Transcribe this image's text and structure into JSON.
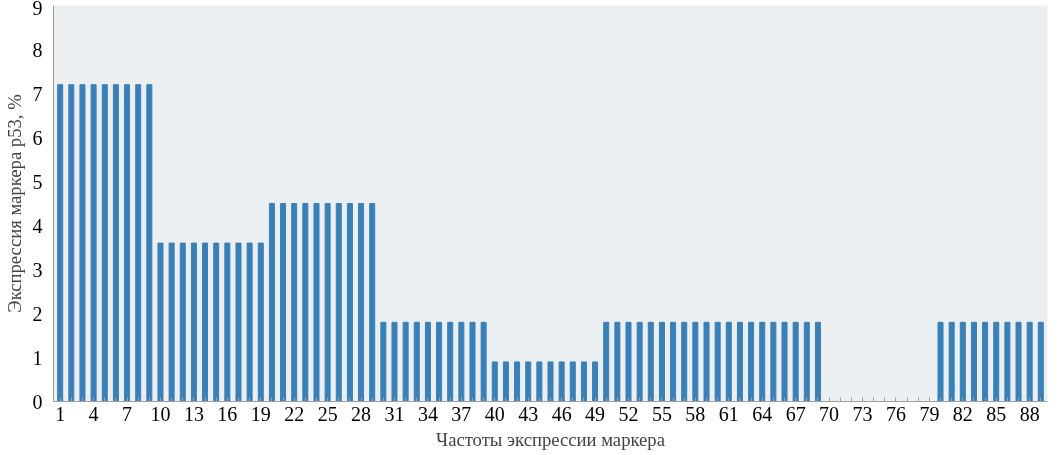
{
  "chart_data": {
    "type": "bar",
    "xlabel": "Частоты экспрессии маркера",
    "ylabel": "Экспрессия маркера p53, %",
    "categories": [
      "1",
      null,
      null,
      "4",
      null,
      null,
      "7",
      null,
      null,
      "10",
      null,
      null,
      "13",
      null,
      null,
      "16",
      null,
      null,
      "19",
      null,
      null,
      "22",
      null,
      null,
      "25",
      null,
      null,
      "28",
      null,
      null,
      "31",
      null,
      null,
      "34",
      null,
      null,
      "37",
      null,
      null,
      "40",
      null,
      null,
      "43",
      null,
      null,
      "46",
      null,
      null,
      "49",
      null,
      null,
      "52",
      null,
      null,
      "55",
      null,
      null,
      "58",
      null,
      null,
      "61",
      null,
      null,
      "64",
      null,
      null,
      "67",
      null,
      null,
      "70",
      null,
      null,
      "73",
      null,
      null,
      "76",
      null,
      null,
      "79",
      null,
      null,
      "82",
      null,
      null,
      "85",
      null,
      null,
      "88",
      null
    ],
    "values": [
      7.2,
      7.2,
      7.2,
      7.2,
      7.2,
      7.2,
      7.2,
      7.2,
      7.2,
      3.6,
      3.6,
      3.6,
      3.6,
      3.6,
      3.6,
      3.6,
      3.6,
      3.6,
      3.6,
      4.5,
      4.5,
      4.5,
      4.5,
      4.5,
      4.5,
      4.5,
      4.5,
      4.5,
      4.5,
      1.8,
      1.8,
      1.8,
      1.8,
      1.8,
      1.8,
      1.8,
      1.8,
      1.8,
      1.8,
      0.9,
      0.9,
      0.9,
      0.9,
      0.9,
      0.9,
      0.9,
      0.9,
      0.9,
      0.9,
      1.8,
      1.8,
      1.8,
      1.8,
      1.8,
      1.8,
      1.8,
      1.8,
      1.8,
      1.8,
      1.8,
      1.8,
      1.8,
      1.8,
      1.8,
      1.8,
      1.8,
      1.8,
      1.8,
      1.8,
      0,
      0,
      0,
      0,
      0,
      0,
      0,
      0,
      0,
      0,
      1.8,
      1.8,
      1.8,
      1.8,
      1.8,
      1.8,
      1.8,
      1.8,
      1.8,
      1.8
    ],
    "color": "#3a80b8",
    "ylim": [
      0,
      9
    ],
    "yticks": [
      0,
      1,
      2,
      3,
      4,
      5,
      6,
      7,
      8,
      9
    ],
    "grid": false
  }
}
